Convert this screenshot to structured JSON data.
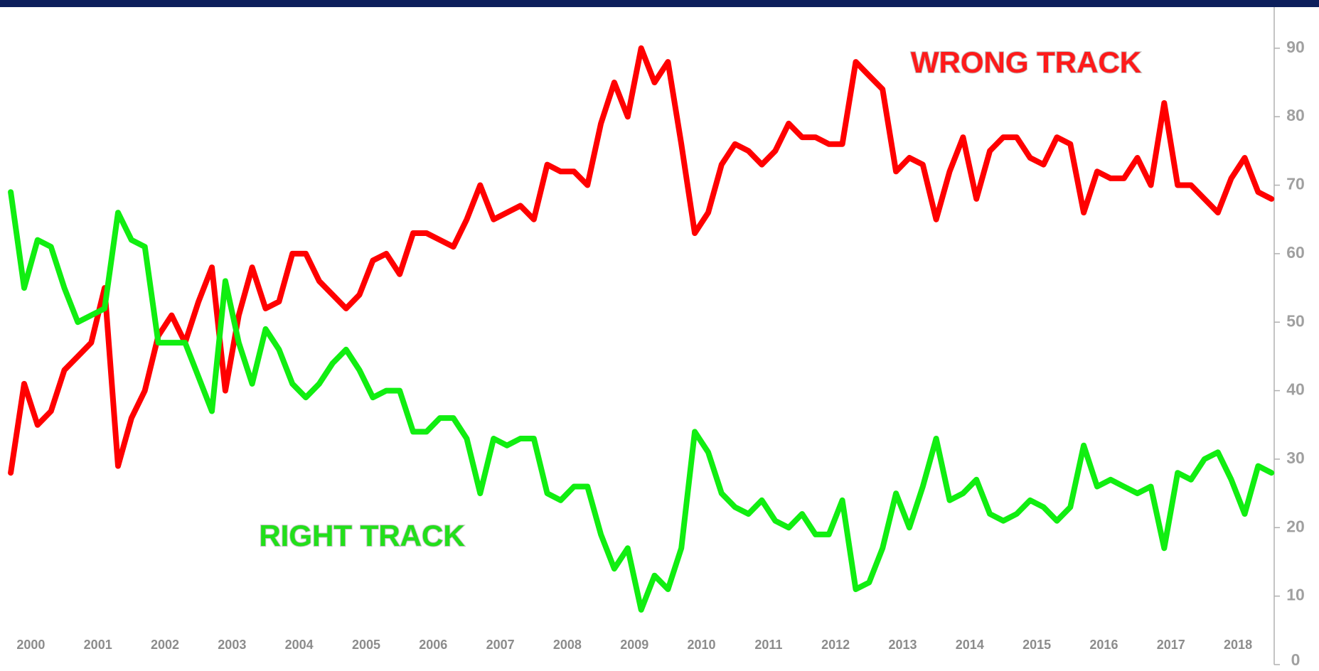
{
  "chart_data": {
    "type": "line",
    "annotations": [
      {
        "text": "WRONG TRACK",
        "color": "#ff1a1a"
      },
      {
        "text": "RIGHT TRACK",
        "color": "#22e01a"
      }
    ],
    "x": [
      1999.7,
      1999.9,
      2000.1,
      2000.3,
      2000.5,
      2000.7,
      2000.9,
      2001.1,
      2001.3,
      2001.5,
      2001.7,
      2001.9,
      2002.1,
      2002.3,
      2002.5,
      2002.7,
      2002.9,
      2003.1,
      2003.3,
      2003.5,
      2003.7,
      2003.9,
      2004.1,
      2004.3,
      2004.5,
      2004.7,
      2004.9,
      2005.1,
      2005.3,
      2005.5,
      2005.7,
      2005.9,
      2006.1,
      2006.3,
      2006.5,
      2006.7,
      2006.9,
      2007.1,
      2007.3,
      2007.5,
      2007.7,
      2007.9,
      2008.1,
      2008.3,
      2008.5,
      2008.7,
      2008.9,
      2009.1,
      2009.3,
      2009.5,
      2009.7,
      2009.9,
      2010.1,
      2010.3,
      2010.5,
      2010.7,
      2010.9,
      2011.1,
      2011.3,
      2011.5,
      2011.7,
      2011.9,
      2012.1,
      2012.3,
      2012.5,
      2012.7,
      2012.9,
      2013.1,
      2013.3,
      2013.5,
      2013.7,
      2013.9,
      2014.1,
      2014.3,
      2014.5,
      2014.7,
      2014.9,
      2015.1,
      2015.3,
      2015.5,
      2015.7,
      2015.9,
      2016.1,
      2016.3,
      2016.5,
      2016.7,
      2016.9,
      2017.1,
      2017.3,
      2017.5,
      2017.7,
      2017.9,
      2018.1,
      2018.3,
      2018.5
    ],
    "series": [
      {
        "name": "WRONG TRACK",
        "color": "#ff0000",
        "values": [
          28,
          41,
          35,
          37,
          43,
          45,
          47,
          55,
          29,
          36,
          40,
          48,
          51,
          47,
          53,
          58,
          40,
          51,
          58,
          52,
          53,
          60,
          60,
          56,
          54,
          52,
          54,
          59,
          60,
          57,
          63,
          63,
          62,
          61,
          65,
          70,
          65,
          66,
          67,
          65,
          73,
          72,
          72,
          70,
          79,
          85,
          80,
          90,
          85,
          88,
          76,
          63,
          66,
          73,
          76,
          75,
          73,
          75,
          79,
          77,
          77,
          76,
          76,
          88,
          86,
          84,
          72,
          74,
          73,
          65,
          72,
          77,
          68,
          75,
          77,
          77,
          74,
          73,
          77,
          76,
          66,
          72,
          71,
          71,
          74,
          70,
          82,
          70,
          70,
          68,
          66,
          71,
          74,
          69,
          68
        ]
      },
      {
        "name": "RIGHT TRACK",
        "color": "#11ee11",
        "values": [
          69,
          55,
          62,
          61,
          55,
          50,
          51,
          52,
          66,
          62,
          61,
          47,
          47,
          47,
          42,
          37,
          56,
          47,
          41,
          49,
          46,
          41,
          39,
          41,
          44,
          46,
          43,
          39,
          40,
          40,
          34,
          34,
          36,
          36,
          33,
          25,
          33,
          32,
          33,
          33,
          25,
          24,
          26,
          26,
          19,
          14,
          17,
          8,
          13,
          11,
          17,
          34,
          31,
          25,
          23,
          22,
          24,
          21,
          20,
          22,
          19,
          19,
          24,
          11,
          12,
          17,
          25,
          20,
          26,
          33,
          24,
          25,
          27,
          22,
          21,
          22,
          24,
          23,
          21,
          23,
          32,
          26,
          27,
          26,
          25,
          26,
          17,
          28,
          27,
          30,
          31,
          27,
          22,
          29,
          28
        ]
      }
    ],
    "xlim": [
      1999.54,
      2018.54
    ],
    "xticks": [
      2000,
      2001,
      2002,
      2003,
      2004,
      2005,
      2006,
      2007,
      2008,
      2009,
      2010,
      2011,
      2012,
      2013,
      2014,
      2015,
      2016,
      2017,
      2018
    ],
    "ylim": [
      0,
      96
    ],
    "yticks": [
      0,
      10,
      20,
      30,
      40,
      50,
      60,
      70,
      80,
      90
    ],
    "y_axis_side": "right"
  }
}
